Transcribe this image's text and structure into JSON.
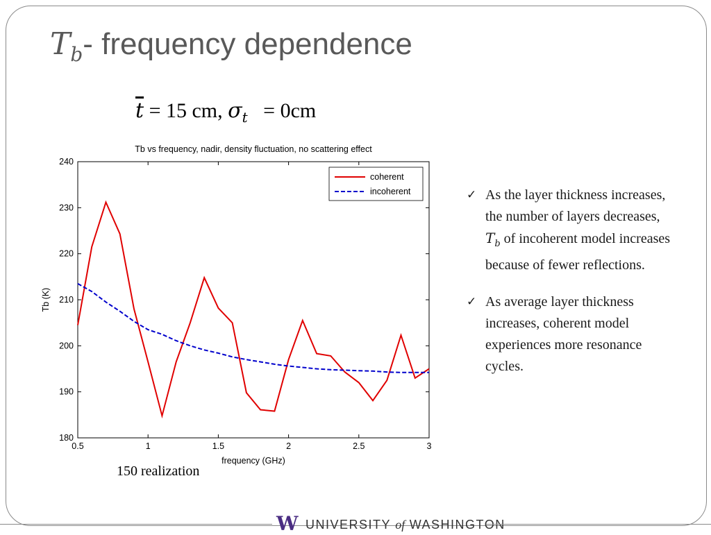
{
  "slide": {
    "title_symbol": "T",
    "title_subscript": "b",
    "title_text": "- frequency dependence",
    "equation": {
      "t_symbol": "t",
      "t_value": " = 15 cm, ",
      "sigma_symbol": "σ",
      "sigma_sub": "t",
      "sigma_value": "   = 0cm"
    },
    "bullets": [
      {
        "pre": "As the layer thickness increases, the number of layers decreases, ",
        "sym": "T",
        "sub": "b",
        "post": " of incoherent model increases because of fewer reflections."
      },
      {
        "pre": "As average layer thickness increases, coherent model experiences more resonance cycles.",
        "sym": "",
        "sub": "",
        "post": ""
      }
    ],
    "caption": "150 realization",
    "footer": {
      "logo_letter": "W",
      "university": "UNIVERSITY ",
      "of": "of",
      "washington": " WASHINGTON"
    }
  },
  "chart_data": {
    "type": "line",
    "title": "Tb vs frequency, nadir, density fluctuation, no scattering effect",
    "xlabel": "frequency (GHz)",
    "ylabel": "Tb (K)",
    "xlim": [
      0.5,
      3
    ],
    "ylim": [
      180,
      240
    ],
    "xticks": [
      0.5,
      1,
      1.5,
      2,
      2.5,
      3
    ],
    "xtick_labels": [
      "0.5",
      "1",
      "1.5",
      "2",
      "2.5",
      "3"
    ],
    "yticks": [
      180,
      190,
      200,
      210,
      220,
      230,
      240
    ],
    "ytick_labels": [
      "180",
      "190",
      "200",
      "210",
      "220",
      "230",
      "240"
    ],
    "grid": false,
    "legend_position": "top-right",
    "series": [
      {
        "name": "coherent",
        "color": "#e00000",
        "style": "solid",
        "x": [
          0.5,
          0.6,
          0.7,
          0.8,
          0.9,
          1.0,
          1.1,
          1.2,
          1.3,
          1.4,
          1.5,
          1.6,
          1.7,
          1.8,
          1.9,
          2.0,
          2.1,
          2.2,
          2.3,
          2.4,
          2.5,
          2.6,
          2.7,
          2.8,
          2.9,
          3.0
        ],
        "y": [
          204.5,
          221.5,
          231.2,
          224.3,
          208,
          196.5,
          184.8,
          196.5,
          205,
          214.8,
          208.2,
          205,
          189.8,
          186.1,
          185.8,
          197,
          205.5,
          198.3,
          197.8,
          194.3,
          192,
          188.1,
          192.5,
          202.3,
          193,
          195
        ]
      },
      {
        "name": "incoherent",
        "color": "#0000cc",
        "style": "dashed",
        "x": [
          0.5,
          0.6,
          0.7,
          0.8,
          0.9,
          1.0,
          1.1,
          1.2,
          1.3,
          1.4,
          1.5,
          1.6,
          1.7,
          1.8,
          1.9,
          2.0,
          2.1,
          2.2,
          2.3,
          2.4,
          2.5,
          2.6,
          2.7,
          2.8,
          2.9,
          3.0
        ],
        "y": [
          213.5,
          211.8,
          209.5,
          207.5,
          205.3,
          203.5,
          202.5,
          201.1,
          200.0,
          199.1,
          198.4,
          197.6,
          197.0,
          196.5,
          196.0,
          195.6,
          195.3,
          195.0,
          194.8,
          194.7,
          194.6,
          194.5,
          194.3,
          194.2,
          194.2,
          194.2
        ]
      }
    ]
  }
}
